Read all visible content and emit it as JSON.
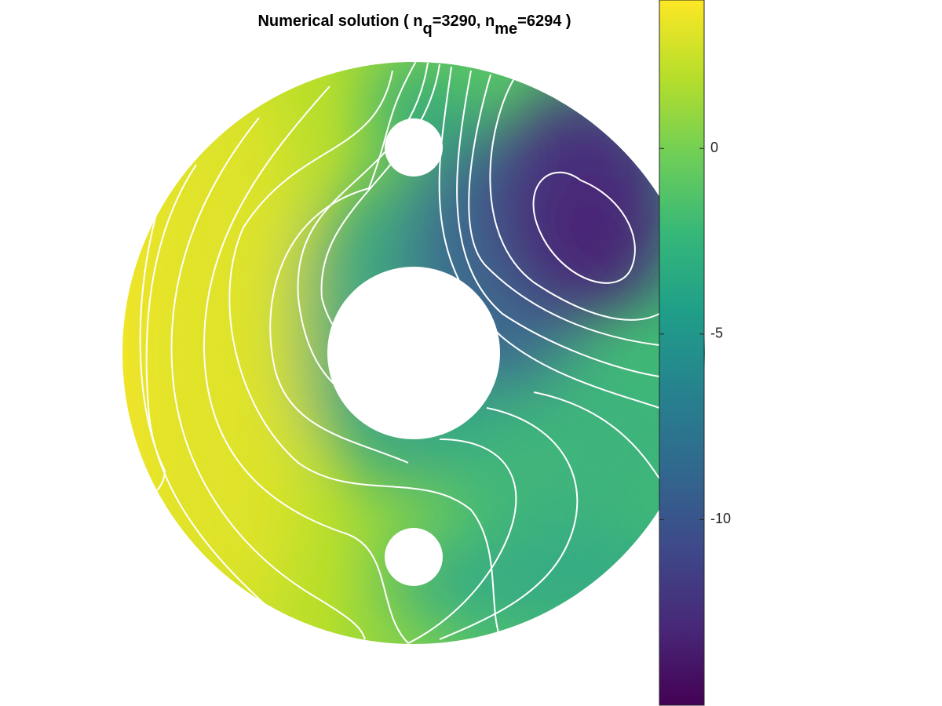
{
  "chart_data": {
    "type": "contour",
    "title_parts": [
      "Numerical solution ( n",
      "q",
      "=3290, n",
      "me",
      "=6294 )"
    ],
    "colormap": "viridis",
    "clim": [
      -15,
      4
    ],
    "cticks": [
      0,
      -5,
      -10
    ]
  }
}
